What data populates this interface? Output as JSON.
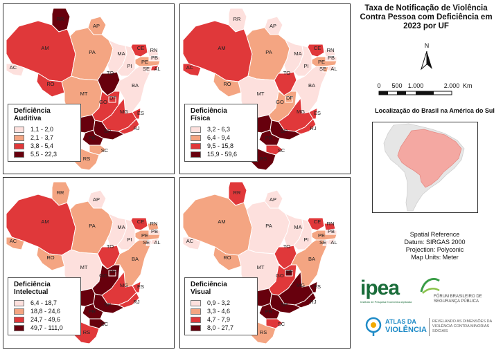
{
  "title": "Taxa de Notificação de Violência Contra Pessoa com Deficiência em 2023 por UF",
  "north_label": "N",
  "scale_bar": {
    "ticks": [
      "0",
      "500",
      "1.000",
      "2.000"
    ],
    "unit": "Km"
  },
  "inset": {
    "title": "Localização do Brasil na América do Sul"
  },
  "spatial_reference": {
    "heading": "Spatial Reference",
    "datum": "Datum: SIRGAS 2000",
    "projection": "Projection: Polyconic",
    "units": "Map Units: Meter"
  },
  "logos": {
    "ipea": "ipea",
    "ipea_sub": "Instituto de Pesquisa Econômica Aplicada",
    "forum": "FÓRUM BRASILEIRO DE SEGURANÇA PÚBLICA",
    "atlas_1": "ATLAS DA",
    "atlas_2": "VIOLÊNCIA",
    "atlas_tag": "REVELANDO AS DIMENSÕES DA VIOLÊNCIA CONTRA MINORIAS SOCIAIS"
  },
  "colors": {
    "c1": "#fde0dd",
    "c2": "#f4a582",
    "c3": "#e0383a",
    "c4": "#67000d",
    "land": "#e8e8e8",
    "border": "#ffffff"
  },
  "panels": [
    {
      "title": "Deficiência Auditiva",
      "legend": [
        "1,1 - 2,0",
        "2,1 - 3,7",
        "3,8 - 5,4",
        "5,5 - 22,3"
      ],
      "classes": {
        "AC": 1,
        "AM": 3,
        "RR": 4,
        "AP": 2,
        "PA": 2,
        "RO": 3,
        "MT": 2,
        "TO": 4,
        "MA": 1,
        "PI": 1,
        "CE": 3,
        "RN": 1,
        "PB": 1,
        "PE": 2,
        "AL": 3,
        "SE": 1,
        "BA": 1,
        "GO": 3,
        "DF": 3,
        "MG": 3,
        "ES": 3,
        "RJ": 3,
        "SP": 4,
        "MS": 4,
        "PR": 4,
        "SC": 2,
        "RS": 2
      }
    },
    {
      "title": "Deficiência Física",
      "legend": [
        "3,2 - 6,3",
        "6,4 - 9,4",
        "9,5 - 15,8",
        "15,9 - 59,6"
      ],
      "classes": {
        "AC": 3,
        "AM": 3,
        "RR": 1,
        "AP": 1,
        "PA": 2,
        "RO": 2,
        "MT": 1,
        "TO": 3,
        "MA": 1,
        "PI": 1,
        "CE": 3,
        "RN": 1,
        "PB": 1,
        "PE": 2,
        "AL": 1,
        "SE": 2,
        "BA": 1,
        "GO": 2,
        "DF": 2,
        "MG": 3,
        "ES": 3,
        "RJ": 3,
        "SP": 4,
        "MS": 4,
        "PR": 4,
        "SC": 3,
        "RS": 4
      }
    },
    {
      "title": "Deficiência Intelectual",
      "legend": [
        "6,4 - 18,7",
        "18,8 - 24,6",
        "24,7 - 49,6",
        "49,7 - 111,0"
      ],
      "classes": {
        "AC": 2,
        "AM": 3,
        "RR": 2,
        "AP": 1,
        "PA": 2,
        "RO": 2,
        "MT": 1,
        "TO": 3,
        "MA": 1,
        "PI": 1,
        "CE": 3,
        "RN": 2,
        "PB": 1,
        "PE": 2,
        "AL": 1,
        "SE": 1,
        "BA": 2,
        "GO": 4,
        "DF": 4,
        "MG": 3,
        "ES": 3,
        "RJ": 3,
        "SP": 4,
        "MS": 4,
        "PR": 4,
        "SC": 4,
        "RS": 3
      }
    },
    {
      "title": "Deficiência Visual",
      "legend": [
        "0,9 - 3,2",
        "3,3 - 4,6",
        "4,7 - 7,9",
        "8,0 - 27,7"
      ],
      "classes": {
        "AC": 1,
        "AM": 2,
        "RR": 3,
        "AP": 1,
        "PA": 1,
        "RO": 2,
        "MT": 1,
        "TO": 3,
        "MA": 1,
        "PI": 1,
        "CE": 3,
        "RN": 3,
        "PB": 1,
        "PE": 2,
        "AL": 1,
        "SE": 1,
        "BA": 2,
        "GO": 3,
        "DF": 4,
        "MG": 4,
        "ES": 4,
        "RJ": 4,
        "SP": 4,
        "MS": 4,
        "PR": 4,
        "SC": 3,
        "RS": 2
      }
    }
  ]
}
